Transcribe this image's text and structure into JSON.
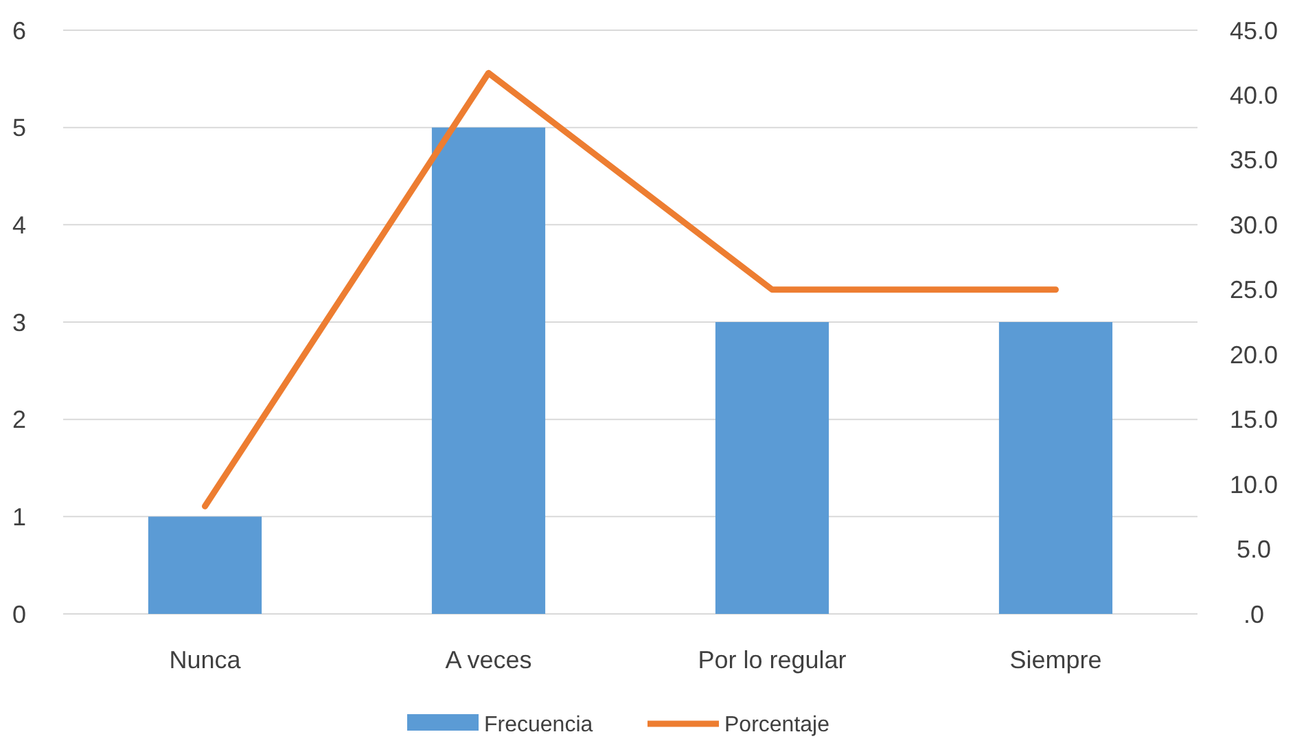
{
  "chart_data": {
    "type": "bar",
    "categories": [
      "Nunca",
      "A veces",
      "Por lo regular",
      "Siempre"
    ],
    "series": [
      {
        "name": "Frecuencia",
        "color": "#5b9bd5",
        "values": [
          1,
          5,
          3,
          3
        ]
      },
      {
        "name": "Porcentaje",
        "type": "line",
        "axis": "y2",
        "color": "#ed7d31",
        "values": [
          8.3,
          41.7,
          25.0,
          25.0
        ]
      }
    ],
    "ylim": [
      0,
      6
    ],
    "yticks": [
      0,
      1,
      2,
      3,
      4,
      5,
      6
    ],
    "y2lim": [
      0,
      45
    ],
    "y2ticks": [
      {
        "value": 0,
        "label": ".0"
      },
      {
        "value": 5,
        "label": "5.0"
      },
      {
        "value": 10,
        "label": "10.0"
      },
      {
        "value": 15,
        "label": "15.0"
      },
      {
        "value": 20,
        "label": "20.0"
      },
      {
        "value": 25,
        "label": "25.0"
      },
      {
        "value": 30,
        "label": "30.0"
      },
      {
        "value": 35,
        "label": "35.0"
      },
      {
        "value": 40,
        "label": "40.0"
      },
      {
        "value": 45,
        "label": "45.0"
      }
    ],
    "grid": "y",
    "legend": "bottom",
    "marker": "none"
  }
}
